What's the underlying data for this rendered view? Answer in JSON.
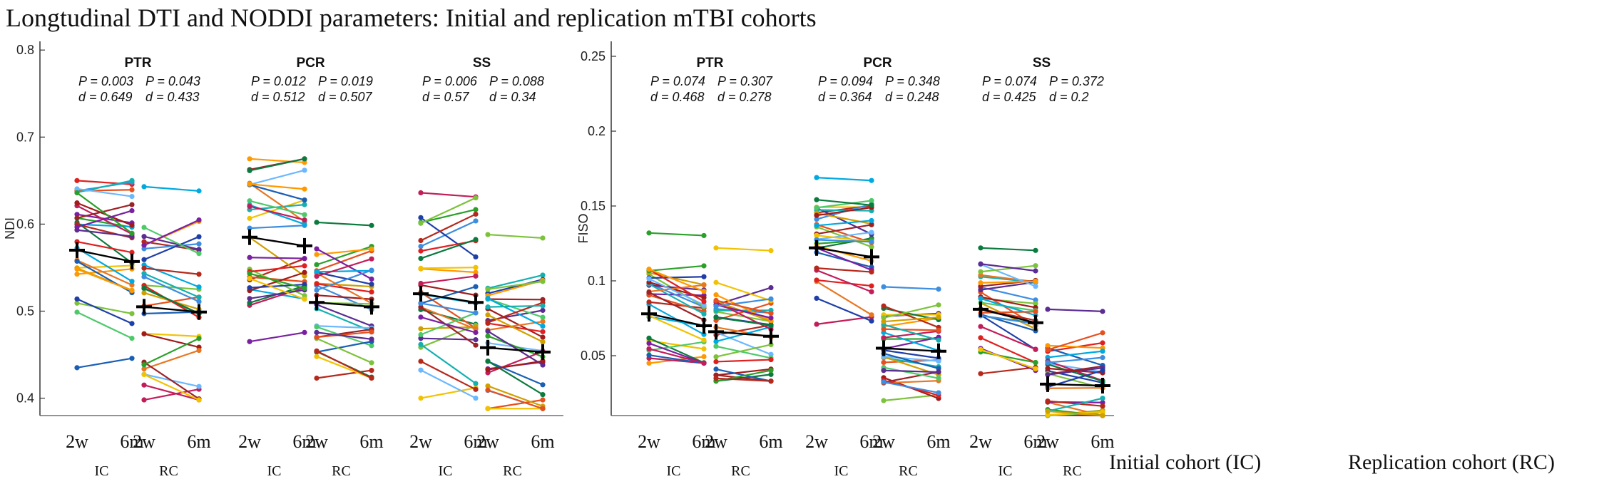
{
  "title": "Longtudinal DTI and NODDI parameters: Initial and replication mTBI cohorts",
  "legend_notes": {
    "ic": "Initial cohort (IC)",
    "rc": "Replication cohort (RC)"
  },
  "colors": [
    "#e02020",
    "#1a5fb4",
    "#2aa02a",
    "#ff9900",
    "#7a1fa2",
    "#00a9e0",
    "#c21d5a",
    "#f2c200",
    "#0b7a3e",
    "#b5281b",
    "#3d8de0",
    "#7cc23a",
    "#e6501e",
    "#5b2c91",
    "#14b0b0",
    "#d0a000",
    "#a21b1b",
    "#1f3fa8",
    "#e87722",
    "#6bb8ff",
    "#9b2226",
    "#4ec96a"
  ],
  "chart_data": [
    {
      "type": "line",
      "panel": "left",
      "ylabel": "NDI",
      "ylim": [
        0.38,
        0.81
      ],
      "yticks": [
        "0.4",
        "0.5",
        "0.6",
        "0.7",
        "0.8"
      ],
      "ytick_values": [
        0.4,
        0.5,
        0.6,
        0.7,
        0.8
      ],
      "tick_labels": [
        "2w",
        "6m",
        "2w",
        "6m"
      ],
      "cohort_labels": [
        "IC",
        "RC"
      ],
      "groups": [
        {
          "name": "PTR",
          "ic": {
            "p": "P = 0.003",
            "d": "d = 0.649",
            "mean_2w": 0.57,
            "mean_6m": 0.557,
            "min": 0.435,
            "max": 0.65,
            "shift": -0.013
          },
          "rc": {
            "p": "P = 0.043",
            "d": "d = 0.433",
            "mean_2w": 0.505,
            "mean_6m": 0.499,
            "min": 0.398,
            "max": 0.643,
            "shift": -0.006
          }
        },
        {
          "name": "PCR",
          "ic": {
            "p": "P = 0.012",
            "d": "d = 0.512",
            "mean_2w": 0.585,
            "mean_6m": 0.575,
            "min": 0.465,
            "max": 0.675,
            "shift": -0.01
          },
          "rc": {
            "p": "P = 0.019",
            "d": "d = 0.507",
            "mean_2w": 0.51,
            "mean_6m": 0.505,
            "min": 0.423,
            "max": 0.602,
            "shift": -0.005
          }
        },
        {
          "name": "SS",
          "ic": {
            "p": "P = 0.006",
            "d": "d = 0.57",
            "mean_2w": 0.52,
            "mean_6m": 0.51,
            "min": 0.4,
            "max": 0.636,
            "shift": -0.01
          },
          "rc": {
            "p": "P = 0.088",
            "d": "d = 0.34",
            "mean_2w": 0.458,
            "mean_6m": 0.453,
            "min": 0.388,
            "max": 0.588,
            "shift": -0.005
          }
        }
      ]
    },
    {
      "type": "line",
      "panel": "right",
      "ylabel": "FISO",
      "ylim": [
        0.01,
        0.26
      ],
      "yticks": [
        "0.05",
        "0.1",
        "0.15",
        "0.2",
        "0.25"
      ],
      "ytick_values": [
        0.05,
        0.1,
        0.15,
        0.2,
        0.25
      ],
      "tick_labels": [
        "2w",
        "6m",
        "2w",
        "6m"
      ],
      "cohort_labels": [
        "IC",
        "RC"
      ],
      "groups": [
        {
          "name": "PTR",
          "ic": {
            "p": "P = 0.074",
            "d": "d = 0.468",
            "mean_2w": 0.078,
            "mean_6m": 0.07,
            "min": 0.045,
            "max": 0.132,
            "shift": -0.008
          },
          "rc": {
            "p": "P = 0.307",
            "d": "d = 0.278",
            "mean_2w": 0.066,
            "mean_6m": 0.063,
            "min": 0.033,
            "max": 0.122,
            "shift": -0.003
          }
        },
        {
          "name": "PCR",
          "ic": {
            "p": "P = 0.094",
            "d": "d = 0.364",
            "mean_2w": 0.122,
            "mean_6m": 0.116,
            "min": 0.071,
            "max": 0.169,
            "shift": -0.006
          },
          "rc": {
            "p": "P = 0.348",
            "d": "d = 0.248",
            "mean_2w": 0.055,
            "mean_6m": 0.053,
            "min": 0.02,
            "max": 0.096,
            "shift": -0.002
          }
        },
        {
          "name": "SS",
          "ic": {
            "p": "P = 0.074",
            "d": "d = 0.425",
            "mean_2w": 0.081,
            "mean_6m": 0.072,
            "min": 0.038,
            "max": 0.122,
            "shift": -0.009
          },
          "rc": {
            "p": "P = 0.372",
            "d": "d = 0.2",
            "mean_2w": 0.031,
            "mean_6m": 0.03,
            "min": 0.01,
            "max": 0.081,
            "shift": -0.001
          }
        }
      ]
    }
  ]
}
